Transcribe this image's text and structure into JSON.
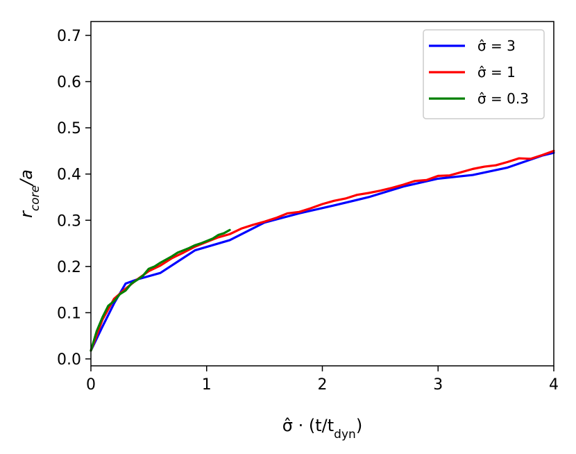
{
  "chart_data": {
    "type": "line",
    "xlabel": {
      "base": "σ̂ · (t/t",
      "subscript": "dyn",
      "suffix": ")"
    },
    "ylabel": {
      "base": "r",
      "subscript": "core",
      "suffix": "/a"
    },
    "xlim": [
      0,
      4
    ],
    "ylim": [
      -0.015,
      0.73
    ],
    "xticks": [
      "0",
      "1",
      "2",
      "3",
      "4"
    ],
    "yticks": [
      "0.0",
      "0.1",
      "0.2",
      "0.3",
      "0.4",
      "0.5",
      "0.6",
      "0.7"
    ],
    "grid": false,
    "legend_position": "top-right",
    "series": [
      {
        "name": "σ̂ = 3",
        "color": "#0000ff",
        "points": [
          [
            0,
            0.018
          ],
          [
            0.1,
            0.07
          ],
          [
            0.2,
            0.12
          ],
          [
            0.3,
            0.163
          ],
          [
            0.4,
            0.172
          ],
          [
            0.6,
            0.186
          ],
          [
            0.9,
            0.235
          ],
          [
            1.2,
            0.257
          ],
          [
            1.5,
            0.295
          ],
          [
            1.8,
            0.315
          ],
          [
            2.1,
            0.332
          ],
          [
            2.4,
            0.35
          ],
          [
            2.7,
            0.373
          ],
          [
            3.0,
            0.39
          ],
          [
            3.3,
            0.398
          ],
          [
            3.6,
            0.414
          ],
          [
            3.9,
            0.44
          ],
          [
            4.0,
            0.446
          ]
        ]
      },
      {
        "name": "σ̂ = 1",
        "color": "#ff0000",
        "points": [
          [
            0,
            0.018
          ],
          [
            0.1,
            0.085
          ],
          [
            0.2,
            0.13
          ],
          [
            0.3,
            0.152
          ],
          [
            0.4,
            0.172
          ],
          [
            0.5,
            0.19
          ],
          [
            0.6,
            0.202
          ],
          [
            0.7,
            0.218
          ],
          [
            0.8,
            0.23
          ],
          [
            0.9,
            0.243
          ],
          [
            1.0,
            0.253
          ],
          [
            1.1,
            0.263
          ],
          [
            1.2,
            0.27
          ],
          [
            1.3,
            0.282
          ],
          [
            1.4,
            0.29
          ],
          [
            1.5,
            0.297
          ],
          [
            1.6,
            0.305
          ],
          [
            1.7,
            0.315
          ],
          [
            1.8,
            0.318
          ],
          [
            1.9,
            0.326
          ],
          [
            2.0,
            0.335
          ],
          [
            2.1,
            0.342
          ],
          [
            2.2,
            0.347
          ],
          [
            2.3,
            0.355
          ],
          [
            2.4,
            0.359
          ],
          [
            2.5,
            0.364
          ],
          [
            2.6,
            0.37
          ],
          [
            2.7,
            0.377
          ],
          [
            2.8,
            0.385
          ],
          [
            2.9,
            0.387
          ],
          [
            3.0,
            0.396
          ],
          [
            3.1,
            0.397
          ],
          [
            3.2,
            0.404
          ],
          [
            3.3,
            0.411
          ],
          [
            3.4,
            0.416
          ],
          [
            3.5,
            0.419
          ],
          [
            3.6,
            0.426
          ],
          [
            3.7,
            0.434
          ],
          [
            3.8,
            0.433
          ],
          [
            3.9,
            0.441
          ],
          [
            4.0,
            0.45
          ]
        ]
      },
      {
        "name": "σ̂ = 0.3",
        "color": "#008000",
        "points": [
          [
            0,
            0.018
          ],
          [
            0.05,
            0.06
          ],
          [
            0.1,
            0.09
          ],
          [
            0.15,
            0.115
          ],
          [
            0.2,
            0.125
          ],
          [
            0.25,
            0.14
          ],
          [
            0.3,
            0.148
          ],
          [
            0.35,
            0.163
          ],
          [
            0.4,
            0.171
          ],
          [
            0.45,
            0.18
          ],
          [
            0.5,
            0.195
          ],
          [
            0.55,
            0.2
          ],
          [
            0.6,
            0.208
          ],
          [
            0.65,
            0.215
          ],
          [
            0.7,
            0.222
          ],
          [
            0.75,
            0.23
          ],
          [
            0.8,
            0.235
          ],
          [
            0.85,
            0.24
          ],
          [
            0.9,
            0.246
          ],
          [
            0.95,
            0.25
          ],
          [
            1.0,
            0.255
          ],
          [
            1.05,
            0.26
          ],
          [
            1.1,
            0.268
          ],
          [
            1.15,
            0.272
          ],
          [
            1.2,
            0.279
          ]
        ]
      }
    ]
  }
}
